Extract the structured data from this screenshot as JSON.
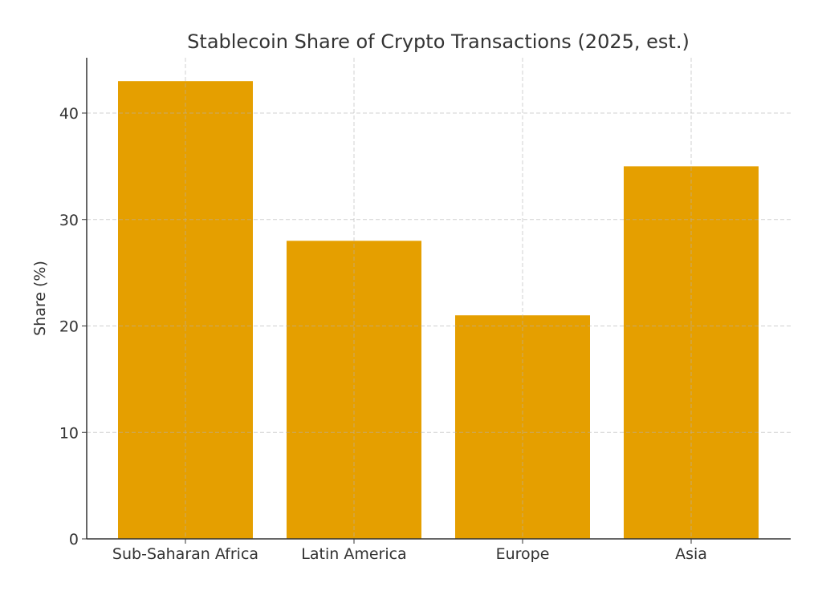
{
  "chart_data": {
    "type": "bar",
    "title": "Stablecoin Share of Crypto Transactions (2025, est.)",
    "xlabel": "",
    "ylabel": "Share (%)",
    "categories": [
      "Sub-Saharan Africa",
      "Latin America",
      "Europe",
      "Asia"
    ],
    "values": [
      43,
      28,
      21,
      35
    ],
    "ylim": [
      0,
      45
    ],
    "yticks": [
      0,
      10,
      20,
      30,
      40
    ],
    "grid": true,
    "bar_color": "#E59F00"
  }
}
